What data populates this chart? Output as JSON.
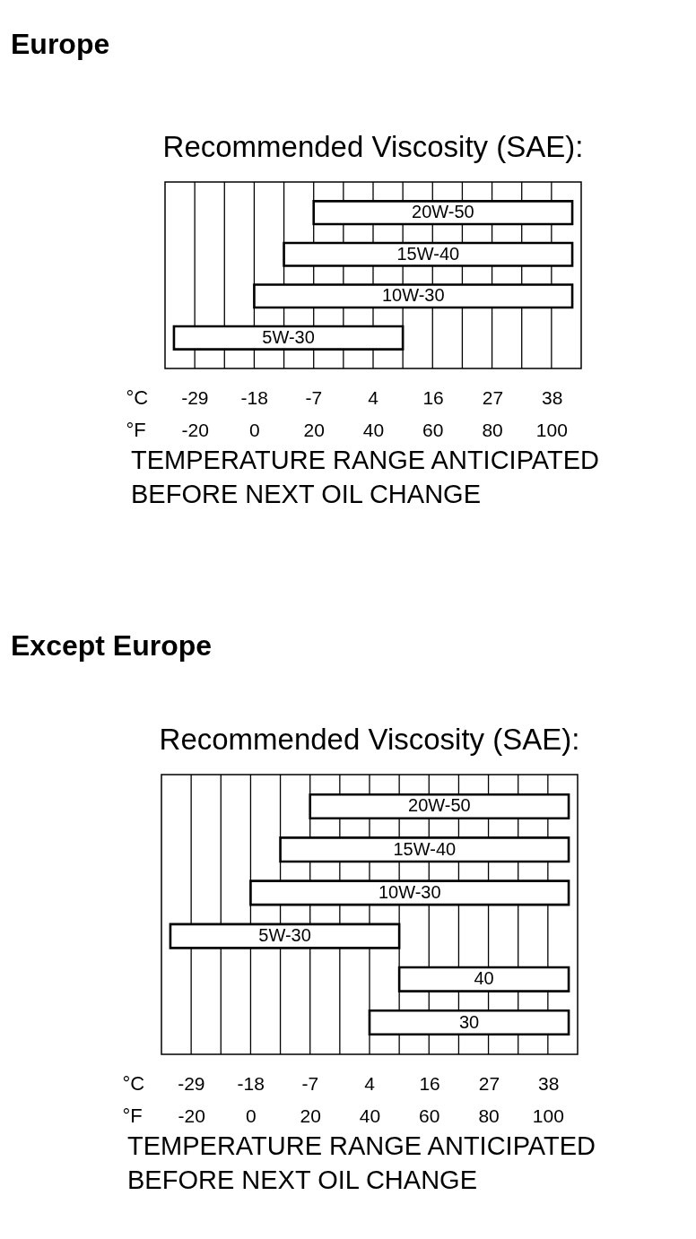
{
  "chart_data": [
    {
      "type": "bar",
      "orientation": "horizontal",
      "title": "Europe",
      "subtitle": "Recommended Viscosity (SAE):",
      "categories": [
        "20W-50",
        "15W-40",
        "10W-30",
        "5W-30"
      ],
      "base": [
        20,
        10,
        0,
        -27
      ],
      "values": [
        87,
        97,
        107,
        77
      ],
      "color": "#ffffff",
      "xlabel": "°F",
      "x2label": "°C",
      "xlim": [
        -30,
        110
      ],
      "xticks": [
        -20,
        {
          "value": -10,
          "label": null
        },
        0,
        {
          "value": 10,
          "label": null
        },
        20,
        {
          "value": 30,
          "label": null
        },
        40,
        {
          "value": 50,
          "label": null
        },
        60,
        {
          "value": 70,
          "label": null
        },
        80,
        {
          "value": 90,
          "label": null
        },
        100
      ],
      "x2lim": [
        -34.4,
        43.3
      ],
      "x2ticks": [
        {
          "value": -28.9,
          "label": "-29"
        },
        {
          "value": -17.8,
          "label": "-18"
        },
        {
          "value": -6.7,
          "label": "-7"
        },
        {
          "value": 4.4,
          "label": "4"
        },
        {
          "value": 15.6,
          "label": "16"
        },
        {
          "value": 26.7,
          "label": "27"
        },
        {
          "value": 37.8,
          "label": "38"
        }
      ],
      "annotations": [
        "TEMPERATURE RANGE ANTICIPATED",
        "BEFORE NEXT OIL CHANGE"
      ],
      "grid": "x",
      "tick_labels": "x"
    },
    {
      "type": "bar",
      "orientation": "horizontal",
      "title": "Except Europe",
      "subtitle": "Recommended Viscosity (SAE):",
      "categories": [
        "20W-50",
        "15W-40",
        "10W-30",
        "5W-30",
        "40",
        "30"
      ],
      "base": [
        20,
        10,
        0,
        -27,
        50,
        40
      ],
      "values": [
        87,
        97,
        107,
        77,
        57,
        67
      ],
      "color": "#ffffff",
      "xlabel": "°F",
      "x2label": "°C",
      "xlim": [
        -30,
        110
      ],
      "xticks": [
        -20,
        {
          "value": -10,
          "label": null
        },
        0,
        {
          "value": 10,
          "label": null
        },
        20,
        {
          "value": 30,
          "label": null
        },
        40,
        {
          "value": 50,
          "label": null
        },
        60,
        {
          "value": 70,
          "label": null
        },
        80,
        {
          "value": 90,
          "label": null
        },
        100
      ],
      "x2lim": [
        -34.4,
        43.3
      ],
      "x2ticks": [
        {
          "value": -28.9,
          "label": "-29"
        },
        {
          "value": -17.8,
          "label": "-18"
        },
        {
          "value": -6.7,
          "label": "-7"
        },
        {
          "value": 4.4,
          "label": "4"
        },
        {
          "value": 15.6,
          "label": "16"
        },
        {
          "value": 26.7,
          "label": "27"
        },
        {
          "value": 37.8,
          "label": "38"
        }
      ],
      "annotations": [
        "TEMPERATURE RANGE ANTICIPATED",
        "BEFORE NEXT OIL CHANGE"
      ],
      "grid": "x",
      "tick_labels": "x"
    }
  ]
}
